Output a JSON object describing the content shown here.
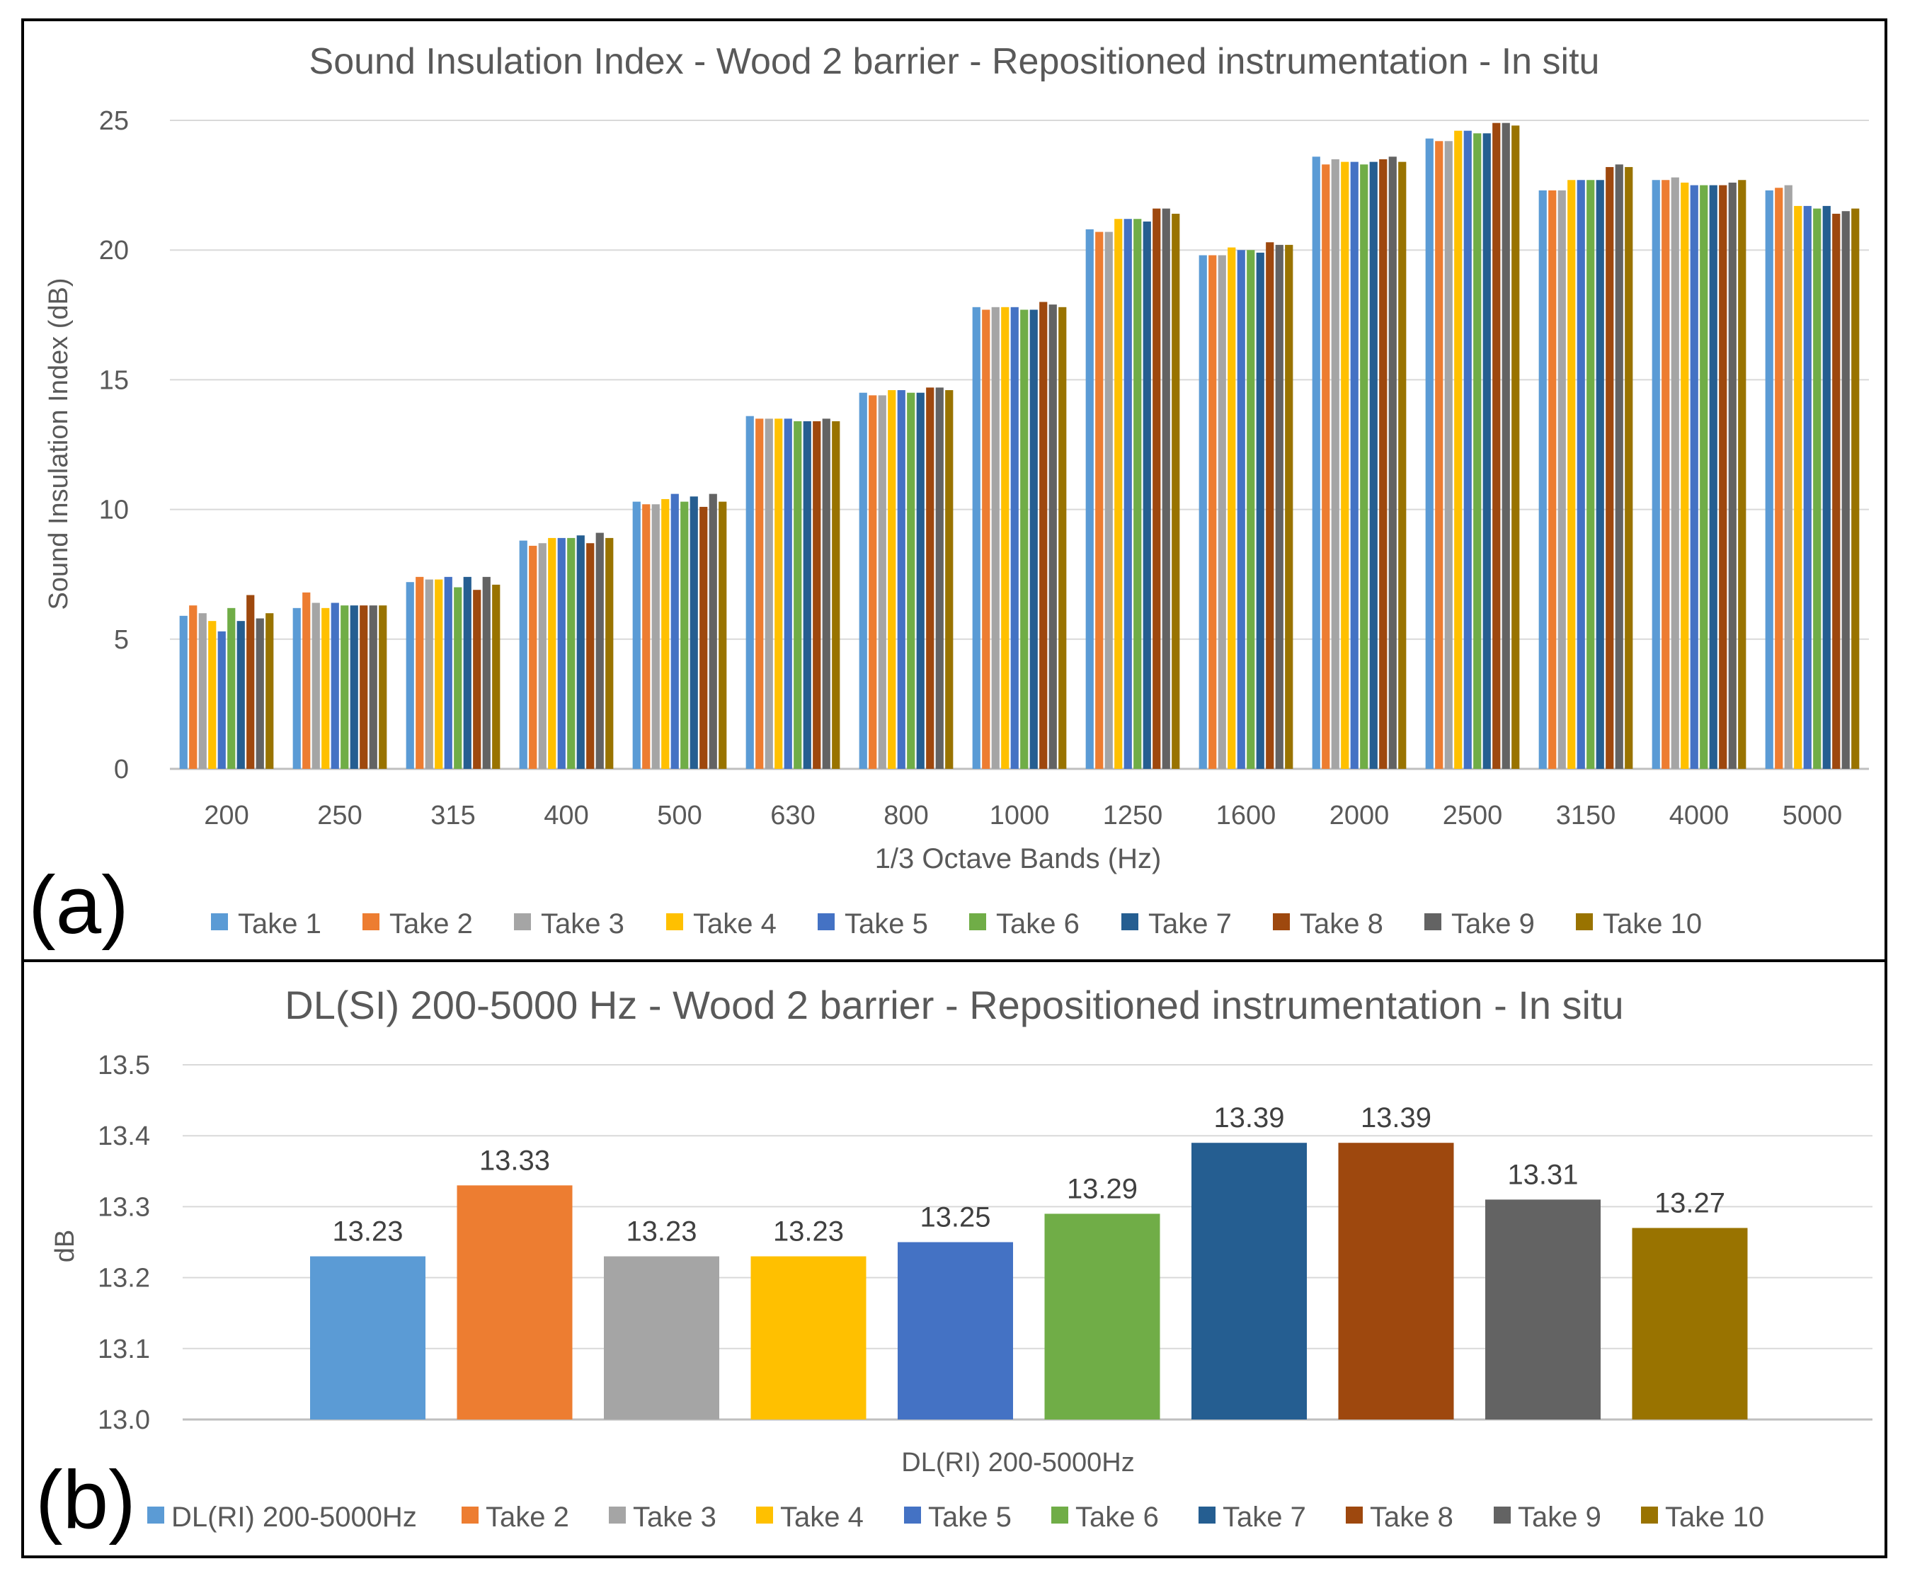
{
  "panel_labels": [
    "(a)",
    "(b)"
  ],
  "colors": [
    "#5b9bd5",
    "#ed7d31",
    "#a5a5a5",
    "#ffc000",
    "#4472c4",
    "#70ad47",
    "#255e91",
    "#9e480e",
    "#636363",
    "#997300"
  ],
  "chart_data": [
    {
      "type": "bar",
      "title": "Sound Insulation Index - Wood 2 barrier - Repositioned instrumentation - In situ",
      "xlabel": "1/3 Octave Bands (Hz)",
      "ylabel": "Sound Insulation Index (dB)",
      "ylim": [
        0,
        25
      ],
      "yticks": [
        "0",
        "5",
        "10",
        "15",
        "20",
        "25"
      ],
      "grid": true,
      "legend_position": "bottom",
      "categories": [
        "200",
        "250",
        "315",
        "400",
        "500",
        "630",
        "800",
        "1000",
        "1250",
        "1600",
        "2000",
        "2500",
        "3150",
        "4000",
        "5000"
      ],
      "series": [
        {
          "name": "Take 1",
          "values": [
            5.9,
            6.2,
            7.2,
            8.8,
            10.3,
            13.6,
            14.5,
            17.8,
            20.8,
            19.8,
            23.6,
            24.3,
            22.3,
            22.7,
            22.3
          ]
        },
        {
          "name": "Take 2",
          "values": [
            6.3,
            6.8,
            7.4,
            8.6,
            10.2,
            13.5,
            14.4,
            17.7,
            20.7,
            19.8,
            23.3,
            24.2,
            22.3,
            22.7,
            22.4
          ]
        },
        {
          "name": "Take 3",
          "values": [
            6.0,
            6.4,
            7.3,
            8.7,
            10.2,
            13.5,
            14.4,
            17.8,
            20.7,
            19.8,
            23.5,
            24.2,
            22.3,
            22.8,
            22.5
          ]
        },
        {
          "name": "Take 4",
          "values": [
            5.7,
            6.2,
            7.3,
            8.9,
            10.4,
            13.5,
            14.6,
            17.8,
            21.2,
            20.1,
            23.4,
            24.6,
            22.7,
            22.6,
            21.7
          ]
        },
        {
          "name": "Take 5",
          "values": [
            5.3,
            6.4,
            7.4,
            8.9,
            10.6,
            13.5,
            14.6,
            17.8,
            21.2,
            20.0,
            23.4,
            24.6,
            22.7,
            22.5,
            21.7
          ]
        },
        {
          "name": "Take 6",
          "values": [
            6.2,
            6.3,
            7.0,
            8.9,
            10.3,
            13.4,
            14.5,
            17.7,
            21.2,
            20.0,
            23.3,
            24.5,
            22.7,
            22.5,
            21.6
          ]
        },
        {
          "name": "Take 7",
          "values": [
            5.7,
            6.3,
            7.4,
            9.0,
            10.5,
            13.4,
            14.5,
            17.7,
            21.1,
            19.9,
            23.4,
            24.5,
            22.7,
            22.5,
            21.7
          ]
        },
        {
          "name": "Take 8",
          "values": [
            6.7,
            6.3,
            6.9,
            8.7,
            10.1,
            13.4,
            14.7,
            18.0,
            21.6,
            20.3,
            23.5,
            24.9,
            23.2,
            22.5,
            21.4
          ]
        },
        {
          "name": "Take 9",
          "values": [
            5.8,
            6.3,
            7.4,
            9.1,
            10.6,
            13.5,
            14.7,
            17.9,
            21.6,
            20.2,
            23.6,
            24.9,
            23.3,
            22.6,
            21.5
          ]
        },
        {
          "name": "Take 10",
          "values": [
            6.0,
            6.3,
            7.1,
            8.9,
            10.3,
            13.4,
            14.6,
            17.8,
            21.4,
            20.2,
            23.4,
            24.8,
            23.2,
            22.7,
            21.6
          ]
        }
      ]
    },
    {
      "type": "bar",
      "title": "DL(SI) 200-5000 Hz - Wood 2 barrier - Repositioned instrumentation - In situ",
      "xlabel": "DL(RI) 200-5000Hz",
      "ylabel": "dB",
      "ylim": [
        13.0,
        13.5
      ],
      "yticks": [
        "13.0",
        "13.1",
        "13.2",
        "13.3",
        "13.4",
        "13.5"
      ],
      "grid": true,
      "legend_position": "bottom",
      "categories": [
        "DL(RI) 200-5000Hz"
      ],
      "series": [
        {
          "name": "DL(RI) 200-5000Hz",
          "values": [
            13.23
          ]
        },
        {
          "name": "Take 2",
          "values": [
            13.33
          ]
        },
        {
          "name": "Take 3",
          "values": [
            13.23
          ]
        },
        {
          "name": "Take 4",
          "values": [
            13.23
          ]
        },
        {
          "name": "Take 5",
          "values": [
            13.25
          ]
        },
        {
          "name": "Take 6",
          "values": [
            13.29
          ]
        },
        {
          "name": "Take 7",
          "values": [
            13.39
          ]
        },
        {
          "name": "Take 8",
          "values": [
            13.39
          ]
        },
        {
          "name": "Take 9",
          "values": [
            13.31
          ]
        },
        {
          "name": "Take 10",
          "values": [
            13.27
          ]
        }
      ],
      "data_labels": [
        "13.23",
        "13.33",
        "13.23",
        "13.23",
        "13.25",
        "13.29",
        "13.39",
        "13.39",
        "13.31",
        "13.27"
      ]
    }
  ]
}
